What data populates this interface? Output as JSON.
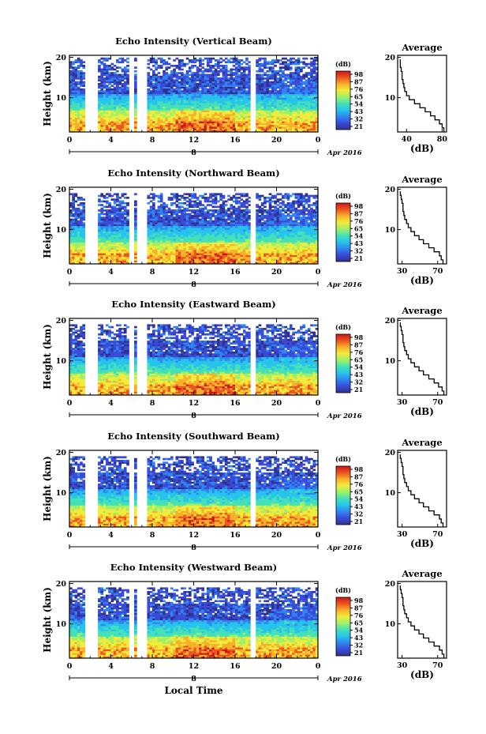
{
  "colors": {
    "colormap": [
      "#30318f",
      "#3a4bd8",
      "#2f86f0",
      "#27c3ec",
      "#44e0b8",
      "#9ef06a",
      "#f0ec3c",
      "#f8b02a",
      "#ec5520",
      "#c81818"
    ],
    "line": "#000000",
    "gap": "#ffffff"
  },
  "chart_data": [
    {
      "type": "heatmap",
      "title": "Echo Intensity (Vertical Beam)",
      "ylabel": "Height (km)",
      "xticks": [
        "0",
        "4",
        "8",
        "12",
        "16",
        "20",
        "0"
      ],
      "yticks": [
        "20",
        "10"
      ],
      "xlim": [
        0,
        24
      ],
      "ylim": [
        1.5,
        20.5
      ],
      "date_tick": "8",
      "date_label": "Apr 2016",
      "colorbar_unit": "(dB)",
      "colorbar_ticks": [
        "98",
        "87",
        "76",
        "65",
        "54",
        "43",
        "32",
        "21"
      ],
      "gaps": [
        [
          1.7,
          2.6
        ],
        [
          5.8,
          6.1
        ],
        [
          6.6,
          7.3
        ],
        [
          17.5,
          17.9
        ]
      ],
      "top_km_by_hour": [
        19,
        19,
        19,
        19,
        19,
        19,
        19,
        19,
        19,
        19,
        19,
        19,
        19,
        19,
        19,
        19,
        19,
        19,
        19,
        19,
        19,
        19,
        19,
        19,
        19
      ],
      "average_profile": {
        "title": "Average",
        "xlabel": "(dB)",
        "xticks": [
          "40",
          "80"
        ],
        "xlim": [
          30,
          85
        ],
        "yticks": [
          "20",
          "10"
        ],
        "ylim": [
          1.5,
          20.5
        ],
        "height_km": [
          2,
          3,
          4,
          5,
          6,
          7,
          8,
          9,
          10,
          11,
          12,
          13,
          14,
          15,
          16,
          17,
          18,
          19
        ],
        "value_db": [
          82,
          80,
          77,
          72,
          67,
          61,
          55,
          49,
          43,
          40,
          38,
          37,
          36,
          35,
          35,
          34,
          33,
          33
        ]
      }
    },
    {
      "type": "heatmap",
      "title": "Echo Intensity (Northward Beam)",
      "ylabel": "Height (km)",
      "xticks": [
        "0",
        "4",
        "8",
        "12",
        "16",
        "20",
        "0"
      ],
      "yticks": [
        "20",
        "10"
      ],
      "xlim": [
        0,
        24
      ],
      "ylim": [
        1.5,
        20.5
      ],
      "date_tick": "8",
      "date_label": "Apr 2016",
      "colorbar_unit": "(dB)",
      "colorbar_ticks": [
        "98",
        "87",
        "76",
        "65",
        "54",
        "43",
        "32",
        "21"
      ],
      "gaps": [
        [
          1.7,
          2.6
        ],
        [
          5.8,
          6.1
        ],
        [
          6.6,
          7.3
        ],
        [
          17.5,
          17.9
        ]
      ],
      "top_km_by_hour": [
        18,
        18,
        18,
        18,
        18,
        18,
        18,
        18,
        18,
        18,
        18,
        18,
        18,
        18,
        18,
        18,
        18,
        18,
        18,
        18,
        18,
        18,
        18,
        18,
        18
      ],
      "average_profile": {
        "title": "Average",
        "xlabel": "(dB)",
        "xticks": [
          "30",
          "70"
        ],
        "xlim": [
          25,
          80
        ],
        "yticks": [
          "20",
          "10"
        ],
        "ylim": [
          1.5,
          20.5
        ],
        "height_km": [
          2,
          3,
          4,
          5,
          6,
          7,
          8,
          9,
          10,
          11,
          12,
          13,
          14,
          15,
          16,
          17,
          18,
          19
        ],
        "value_db": [
          76,
          74,
          72,
          66,
          60,
          54,
          49,
          44,
          40,
          37,
          35,
          33,
          32,
          31,
          31,
          30,
          29,
          28
        ]
      }
    },
    {
      "type": "heatmap",
      "title": "Echo Intensity (Eastward Beam)",
      "ylabel": "Height (km)",
      "xticks": [
        "0",
        "4",
        "8",
        "12",
        "16",
        "20",
        "0"
      ],
      "yticks": [
        "20",
        "10"
      ],
      "xlim": [
        0,
        24
      ],
      "ylim": [
        1.5,
        20.5
      ],
      "date_tick": "8",
      "date_label": "Apr 2016",
      "colorbar_unit": "(dB)",
      "colorbar_ticks": [
        "98",
        "87",
        "76",
        "65",
        "54",
        "43",
        "32",
        "21"
      ],
      "gaps": [
        [
          1.7,
          2.6
        ],
        [
          5.8,
          6.1
        ],
        [
          6.6,
          7.3
        ],
        [
          17.5,
          17.9
        ]
      ],
      "top_km_by_hour": [
        18,
        18,
        18,
        18,
        18,
        18,
        18,
        18,
        18,
        18,
        18,
        18,
        18,
        18,
        18,
        18,
        18,
        18,
        18,
        18,
        18,
        18,
        18,
        18,
        18
      ],
      "average_profile": {
        "title": "Average",
        "xlabel": "(dB)",
        "xticks": [
          "30",
          "70"
        ],
        "xlim": [
          25,
          80
        ],
        "yticks": [
          "20",
          "10"
        ],
        "ylim": [
          1.5,
          20.5
        ],
        "height_km": [
          2,
          3,
          4,
          5,
          6,
          7,
          8,
          9,
          10,
          11,
          12,
          13,
          14,
          15,
          16,
          17,
          18,
          19
        ],
        "value_db": [
          77,
          75,
          71,
          66,
          60,
          54,
          49,
          44,
          40,
          37,
          35,
          33,
          32,
          31,
          31,
          30,
          29,
          28
        ]
      }
    },
    {
      "type": "heatmap",
      "title": "Echo Intensity (Southward Beam)",
      "ylabel": "Height (km)",
      "xticks": [
        "0",
        "4",
        "8",
        "12",
        "16",
        "20",
        "0"
      ],
      "yticks": [
        "20",
        "10"
      ],
      "xlim": [
        0,
        24
      ],
      "ylim": [
        1.5,
        20.5
      ],
      "date_tick": "8",
      "date_label": "Apr 2016",
      "colorbar_unit": "(dB)",
      "colorbar_ticks": [
        "98",
        "87",
        "76",
        "65",
        "54",
        "43",
        "32",
        "21"
      ],
      "gaps": [
        [
          1.7,
          2.6
        ],
        [
          5.8,
          6.1
        ],
        [
          6.6,
          7.3
        ],
        [
          17.5,
          17.9
        ]
      ],
      "top_km_by_hour": [
        18,
        18,
        18,
        18,
        18,
        18,
        18,
        18,
        18,
        18,
        18,
        18,
        18,
        18,
        18,
        18,
        18,
        18,
        18,
        18,
        18,
        18,
        18,
        18,
        18
      ],
      "average_profile": {
        "title": "Average",
        "xlabel": "(dB)",
        "xticks": [
          "30",
          "70"
        ],
        "xlim": [
          25,
          80
        ],
        "yticks": [
          "20",
          "10"
        ],
        "ylim": [
          1.5,
          20.5
        ],
        "height_km": [
          2,
          3,
          4,
          5,
          6,
          7,
          8,
          9,
          10,
          11,
          12,
          13,
          14,
          15,
          16,
          17,
          18,
          19
        ],
        "value_db": [
          76,
          74,
          72,
          66,
          60,
          54,
          49,
          44,
          40,
          37,
          35,
          33,
          32,
          31,
          31,
          30,
          29,
          28
        ]
      }
    },
    {
      "type": "heatmap",
      "title": "Echo Intensity (Westward Beam)",
      "ylabel": "Height (km)",
      "xticks": [
        "0",
        "4",
        "8",
        "12",
        "16",
        "20",
        "0"
      ],
      "yticks": [
        "20",
        "10"
      ],
      "xlim": [
        0,
        24
      ],
      "ylim": [
        1.5,
        20.5
      ],
      "date_tick": "8",
      "date_label": "Apr 2016",
      "colorbar_unit": "(dB)",
      "colorbar_ticks": [
        "98",
        "87",
        "76",
        "65",
        "54",
        "43",
        "32",
        "21"
      ],
      "gaps": [
        [
          1.7,
          2.6
        ],
        [
          5.8,
          6.1
        ],
        [
          6.6,
          7.3
        ],
        [
          17.5,
          17.9
        ]
      ],
      "top_km_by_hour": [
        18,
        18,
        18,
        18,
        18,
        18,
        18,
        18,
        18,
        18,
        18,
        18,
        18,
        18,
        18,
        18,
        18,
        18,
        18,
        18,
        18,
        18,
        18,
        18,
        18
      ],
      "average_profile": {
        "title": "Average",
        "xlabel": "(dB)",
        "xticks": [
          "30",
          "70"
        ],
        "xlim": [
          25,
          80
        ],
        "yticks": [
          "20",
          "10"
        ],
        "ylim": [
          1.5,
          20.5
        ],
        "height_km": [
          2,
          3,
          4,
          5,
          6,
          7,
          8,
          9,
          10,
          11,
          12,
          13,
          14,
          15,
          16,
          17,
          18,
          19
        ],
        "value_db": [
          77,
          75,
          72,
          66,
          60,
          54,
          49,
          44,
          40,
          37,
          35,
          33,
          32,
          31,
          31,
          30,
          29,
          28
        ]
      }
    }
  ],
  "figure": {
    "xlabel": "Local Time"
  }
}
